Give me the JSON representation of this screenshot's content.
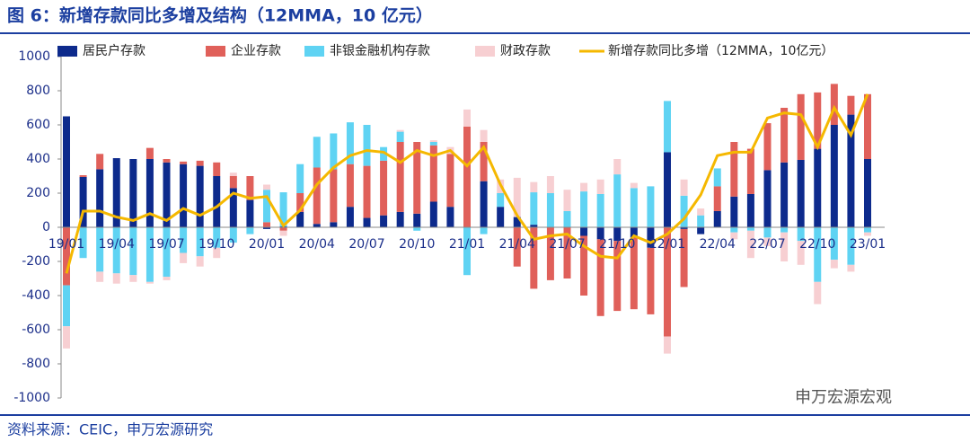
{
  "chart_data": {
    "type": "bar",
    "stacked": true,
    "title": "图 6：新增存款同比多增及结构（12MMA，10 亿元）",
    "source": "资料来源：CEIC，申万宏源研究",
    "watermark": "申万宏源宏观",
    "categories": [
      "19/01",
      null,
      null,
      "19/04",
      null,
      null,
      "19/07",
      null,
      null,
      "19/10",
      null,
      null,
      "20/01",
      null,
      null,
      "20/04",
      null,
      null,
      "20/07",
      null,
      null,
      "20/10",
      null,
      null,
      "21/01",
      null,
      null,
      "21/04",
      null,
      null,
      "21/07",
      null,
      null,
      "21/10",
      null,
      null,
      "22/01",
      null,
      null,
      "22/04",
      null,
      null,
      "22/07",
      null,
      null,
      "22/10",
      null,
      null,
      "23/01"
    ],
    "ylim": [
      -1000,
      1000
    ],
    "yticks": [
      -1000,
      -800,
      -600,
      -400,
      -200,
      0,
      200,
      400,
      600,
      800,
      1000
    ],
    "series": [
      {
        "name": "居民户存款",
        "color": "#0d2a8c",
        "values": [
          650,
          295,
          340,
          405,
          400,
          400,
          380,
          370,
          360,
          300,
          230,
          160,
          -10,
          5,
          90,
          20,
          30,
          120,
          55,
          70,
          90,
          80,
          150,
          120,
          0,
          270,
          120,
          60,
          15,
          0,
          0,
          -50,
          -70,
          -80,
          -60,
          -120,
          440,
          -10,
          -40,
          95,
          180,
          195,
          335,
          380,
          395,
          460,
          600,
          660,
          400
        ]
      },
      {
        "name": "企业存款",
        "color": "#e0605a",
        "values": [
          -340,
          10,
          90,
          0,
          0,
          65,
          20,
          15,
          30,
          80,
          70,
          140,
          30,
          -20,
          110,
          330,
          310,
          250,
          305,
          320,
          410,
          420,
          330,
          310,
          590,
          230,
          0,
          -230,
          -360,
          -310,
          -300,
          -350,
          -450,
          -410,
          -420,
          -390,
          -640,
          -340,
          0,
          145,
          320,
          265,
          275,
          320,
          385,
          330,
          240,
          110,
          380
        ]
      },
      {
        "name": "非银金融机构存款",
        "color": "#5fd3f3",
        "values": [
          -240,
          -180,
          -260,
          -270,
          -280,
          -320,
          -290,
          -150,
          -170,
          -120,
          -90,
          -40,
          190,
          200,
          170,
          180,
          210,
          245,
          240,
          80,
          60,
          -20,
          20,
          0,
          -280,
          -40,
          80,
          0,
          190,
          200,
          95,
          210,
          195,
          310,
          230,
          240,
          300,
          185,
          70,
          105,
          -30,
          -20,
          -60,
          -30,
          -80,
          -320,
          -190,
          -220,
          -30
        ]
      },
      {
        "name": "财政存款",
        "color": "#f7cfd2",
        "values": [
          -130,
          0,
          -60,
          -60,
          -40,
          -10,
          -20,
          -60,
          -60,
          -60,
          20,
          0,
          30,
          -30,
          0,
          0,
          0,
          0,
          0,
          0,
          10,
          0,
          10,
          40,
          100,
          70,
          80,
          230,
          60,
          100,
          125,
          50,
          85,
          90,
          30,
          0,
          -100,
          95,
          40,
          0,
          -40,
          -160,
          -50,
          -170,
          -140,
          -130,
          -50,
          -40,
          -20
        ]
      },
      {
        "name": "新增存款同比多增（12MMA，10亿元）",
        "color": "#f5b800",
        "type": "line",
        "values": [
          -270,
          95,
          95,
          60,
          40,
          80,
          40,
          110,
          70,
          120,
          200,
          170,
          180,
          10,
          100,
          250,
          350,
          420,
          450,
          440,
          380,
          450,
          420,
          450,
          360,
          470,
          250,
          70,
          -70,
          -50,
          -40,
          -110,
          -170,
          -180,
          -50,
          -90,
          -40,
          50,
          190,
          420,
          440,
          440,
          640,
          670,
          660,
          470,
          700,
          540,
          780
        ]
      }
    ]
  }
}
